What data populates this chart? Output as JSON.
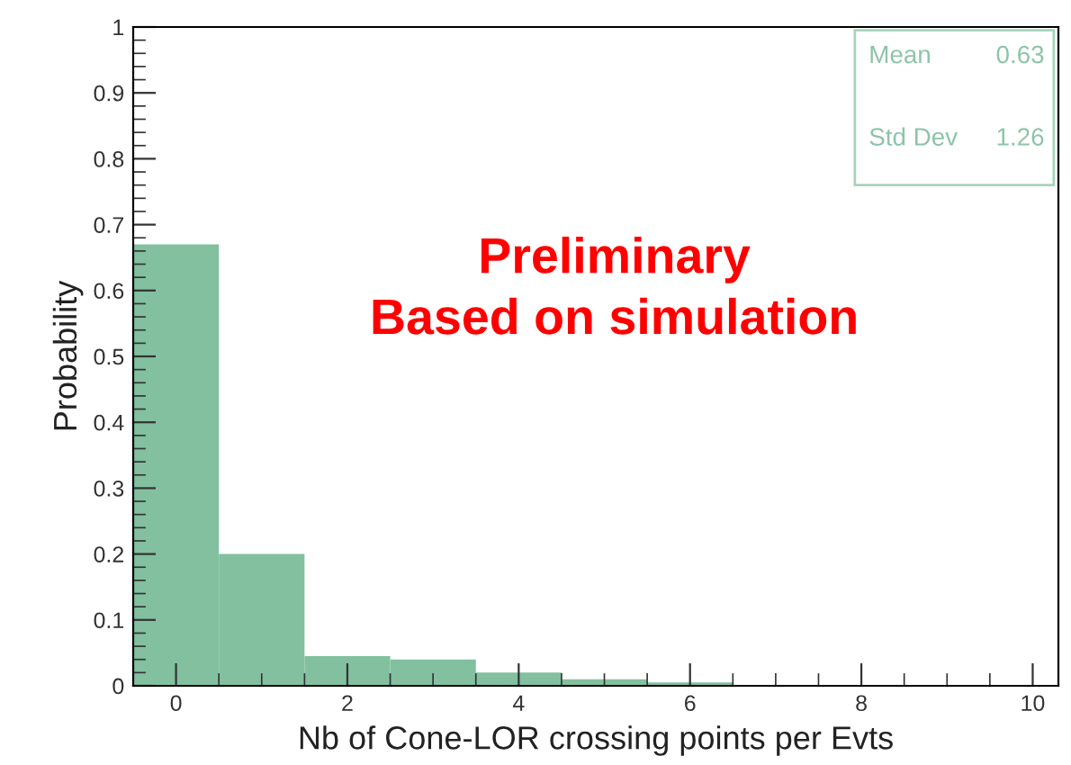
{
  "chart_data": {
    "type": "histogram",
    "xlabel": "Nb of Cone-LOR crossing points per Evts",
    "ylabel": "Probability",
    "bins": [
      -0.5,
      0.5,
      1.5,
      2.5,
      3.5,
      4.5,
      5.5,
      6.5
    ],
    "values": [
      0.67,
      0.2,
      0.045,
      0.04,
      0.02,
      0.01,
      0.005
    ],
    "color": "#82c0a0",
    "xlim": [
      -0.5,
      10.3
    ],
    "xticks": [
      0,
      2,
      4,
      6,
      8,
      10
    ],
    "ylim": [
      0,
      1
    ],
    "yticks": [
      0,
      0.1,
      0.2,
      0.3,
      0.4,
      0.5,
      0.6,
      0.7,
      0.8,
      0.9,
      1
    ],
    "grid": false,
    "annotations": [
      "Mean 0.63",
      "Std Dev 1.26",
      "Preliminary\nBased on simulation"
    ]
  }
}
